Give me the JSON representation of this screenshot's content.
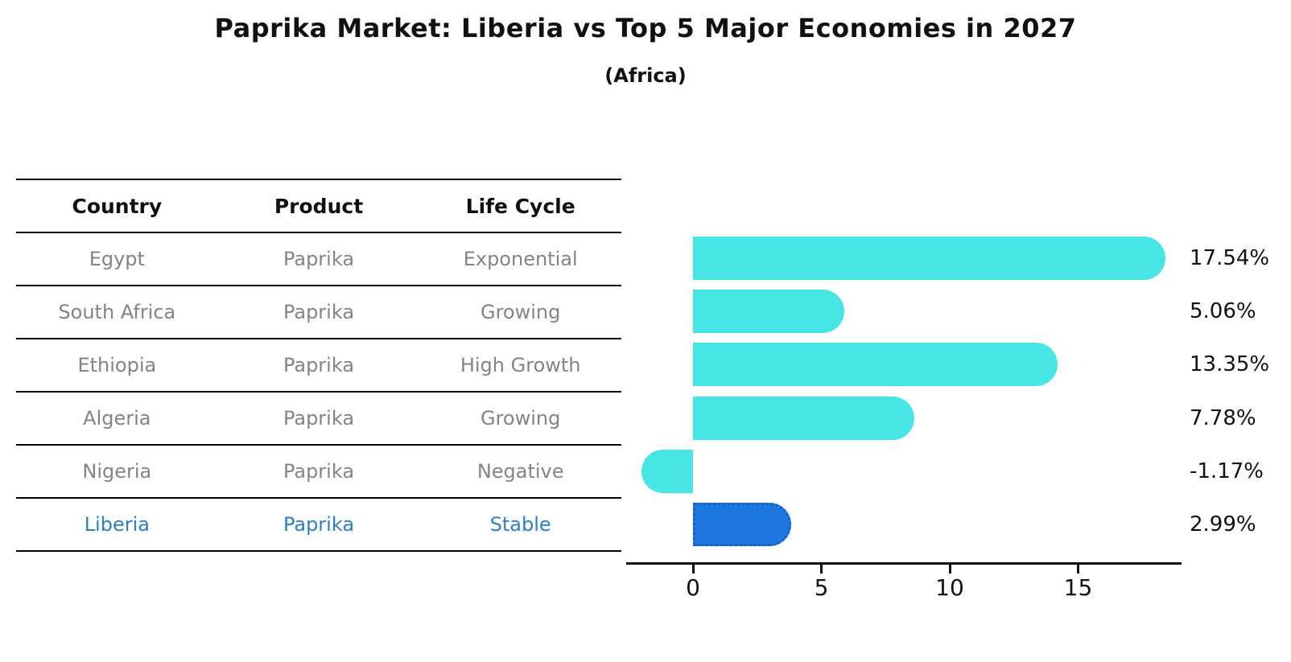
{
  "title": "Paprika Market: Liberia vs Top 5 Major Economies in 2027",
  "subtitle": "(Africa)",
  "table": {
    "headers": [
      "Country",
      "Product",
      "Life Cycle"
    ],
    "rows": [
      {
        "country": "Egypt",
        "product": "Paprika",
        "life_cycle": "Exponential",
        "highlight": false
      },
      {
        "country": "South Africa",
        "product": "Paprika",
        "life_cycle": "Growing",
        "highlight": false
      },
      {
        "country": "Ethiopia",
        "product": "Paprika",
        "life_cycle": "High Growth",
        "highlight": false
      },
      {
        "country": "Algeria",
        "product": "Paprika",
        "life_cycle": "Growing",
        "highlight": false
      },
      {
        "country": "Nigeria",
        "product": "Paprika",
        "life_cycle": "Negative",
        "highlight": false
      },
      {
        "country": "Liberia",
        "product": "Paprika",
        "life_cycle": "Stable",
        "highlight": true
      }
    ]
  },
  "chart_data": {
    "type": "bar",
    "orientation": "horizontal",
    "title": "Paprika Market: Liberia vs Top 5 Major Economies in 2027 (Africa)",
    "categories": [
      "Egypt",
      "South Africa",
      "Ethiopia",
      "Algeria",
      "Nigeria",
      "Liberia"
    ],
    "values": [
      17.54,
      5.06,
      13.35,
      7.78,
      -1.17,
      2.99
    ],
    "labels": [
      "17.54%",
      "5.06%",
      "13.35%",
      "7.78%",
      "-1.17%",
      "2.99%"
    ],
    "value_unit": "percent",
    "x_ticks": [
      0,
      5,
      10,
      15
    ],
    "xlim": [
      -2.6,
      19.1
    ],
    "grid": false,
    "legend": false,
    "bar_color": "#48E5E5",
    "highlight_color": "#1E78E1",
    "highlight_border_color": "#0F5FD0",
    "highlight_index": 5
  },
  "colors": {
    "text_muted": "#848484",
    "highlight_text": "#2E7EC0",
    "axis": "#111111"
  }
}
